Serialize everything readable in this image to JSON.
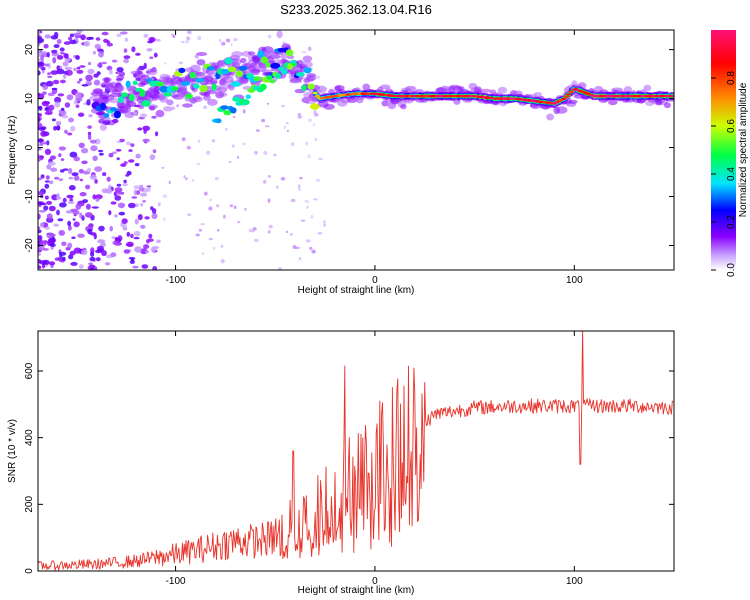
{
  "title": "S233.2025.362.13.04.R16",
  "chart_data": [
    {
      "type": "heatmap",
      "name": "spectrogram",
      "xlabel": "Height of straight line (km)",
      "ylabel": "Frequency (Hz)",
      "xlim": [
        -169,
        150
      ],
      "ylim": [
        -25,
        24
      ],
      "x_ticks": [
        -100,
        0,
        100
      ],
      "y_ticks": [
        -20,
        -10,
        0,
        10,
        20
      ],
      "colorbar": {
        "label": "Normalized spectral amplitude",
        "range": [
          0,
          1
        ],
        "ticks": [
          "0.0",
          "0.2",
          "0.4",
          "0.6",
          "0.8"
        ],
        "colormap": [
          "#ffffff",
          "#8a00ff",
          "#0000ff",
          "#00e5ff",
          "#00ff44",
          "#ccff00",
          "#ff8800",
          "#ff0000",
          "#ff1177"
        ]
      },
      "ridge": {
        "x": [
          -135,
          -125,
          -115,
          -105,
          -95,
          -85,
          -75,
          -65,
          -55,
          -45,
          -35,
          -28,
          -20,
          -10,
          0,
          10,
          20,
          30,
          40,
          50,
          60,
          70,
          80,
          90,
          95,
          100,
          110,
          120,
          130,
          140,
          150
        ],
        "y": [
          9,
          10,
          11,
          12,
          13,
          14,
          15,
          16,
          17,
          17.5,
          14,
          10,
          10.5,
          11,
          11,
          10.5,
          10.5,
          10.5,
          10.5,
          10.5,
          10,
          10,
          9.5,
          9,
          10,
          12,
          10.5,
          10.5,
          10.5,
          10.5,
          10.5
        ],
        "amp": [
          0.35,
          0.4,
          0.45,
          0.5,
          0.55,
          0.6,
          0.5,
          0.5,
          0.5,
          0.5,
          0.6,
          0.7,
          0.75,
          0.8,
          0.9,
          0.9,
          0.9,
          0.95,
          0.95,
          0.95,
          1.0,
          1.0,
          0.95,
          0.9,
          0.9,
          0.9,
          1.0,
          1.0,
          1.0,
          1.0,
          1.0
        ]
      }
    },
    {
      "type": "line",
      "name": "snr",
      "xlabel": "Height of straight line (km)",
      "ylabel": "SNR (10 * v/v)",
      "xlim": [
        -169,
        150
      ],
      "ylim": [
        0,
        720
      ],
      "x_ticks": [
        -100,
        0,
        100
      ],
      "y_ticks": [
        0,
        200,
        400,
        600
      ],
      "color": "#e8332a",
      "trend": {
        "x": [
          -169,
          -140,
          -120,
          -100,
          -80,
          -70,
          -60,
          -50,
          -40,
          -30,
          -20,
          -10,
          0,
          10,
          20,
          30,
          50,
          70,
          90,
          110,
          130,
          150
        ],
        "y": [
          15,
          20,
          30,
          50,
          75,
          90,
          90,
          100,
          130,
          170,
          220,
          270,
          320,
          360,
          420,
          470,
          490,
          495,
          495,
          495,
          495,
          490
        ]
      },
      "spikes": [
        {
          "x": -41,
          "y": 360
        },
        {
          "x": -15,
          "y": 615
        },
        {
          "x": 104,
          "y": 730
        },
        {
          "x": 103,
          "y": 320
        }
      ]
    }
  ]
}
